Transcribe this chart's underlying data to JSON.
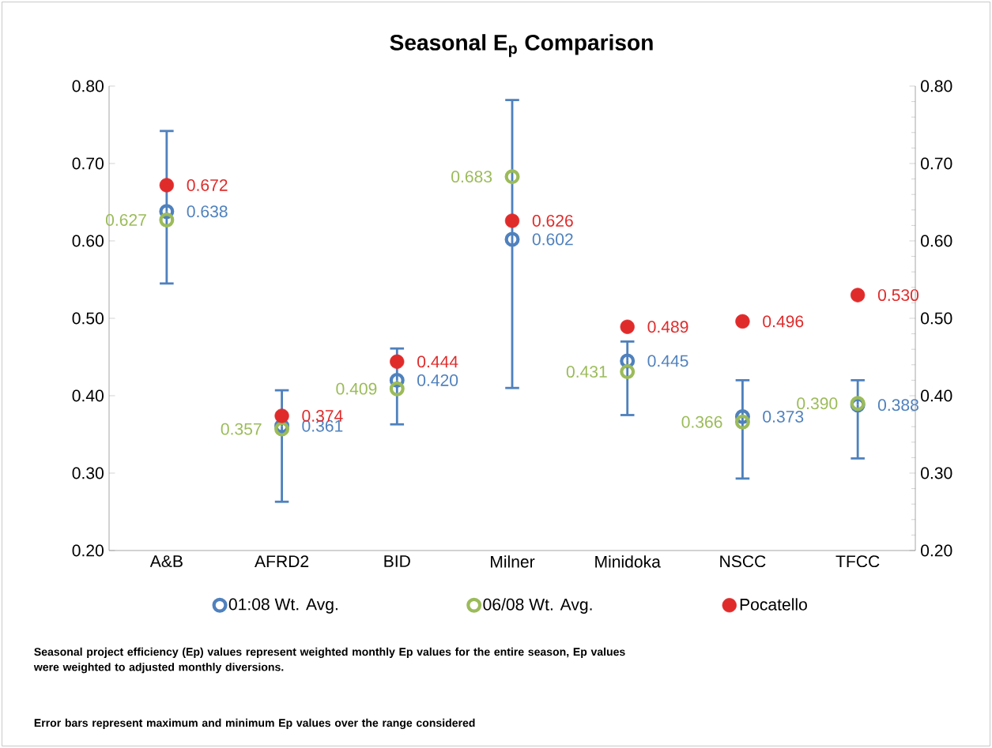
{
  "chart_data": {
    "type": "scatter",
    "title": "Seasonal E$_{p}$ Comparison",
    "categories": [
      "A&B",
      "AFRD2",
      "BID",
      "Milner",
      "Minidoka",
      "NSCC",
      "TFCC"
    ],
    "series": [
      {
        "name": "01:08 Wt. Avg.",
        "color": "#4f81bd",
        "values": [
          0.638,
          0.361,
          0.42,
          0.602,
          0.445,
          0.373,
          0.388
        ],
        "value_labels": [
          "0.638",
          "0.361",
          "0.420",
          "0.602",
          "0.445",
          "0.373",
          "0.388"
        ],
        "errors": [
          [
            0.545,
            0.742
          ],
          [
            0.263,
            0.407
          ],
          [
            0.363,
            0.461
          ],
          [
            0.41,
            0.782
          ],
          [
            0.375,
            0.47
          ],
          [
            0.293,
            0.42
          ],
          [
            0.319,
            0.42
          ]
        ]
      },
      {
        "name": "06/08 Wt. Avg.",
        "color": "#9bbb59",
        "values": [
          0.627,
          0.357,
          0.409,
          0.683,
          0.431,
          0.366,
          0.39
        ],
        "value_labels": [
          "0.627",
          "0.357",
          "0.409",
          "0.683",
          "0.431",
          "0.366",
          "0.390"
        ]
      },
      {
        "name": "Pocatello",
        "color": "#e02b2b",
        "values": [
          0.672,
          0.374,
          0.444,
          0.626,
          0.489,
          0.496,
          0.53
        ],
        "value_labels": [
          "0.672",
          "0.374",
          "0.444",
          "0.626",
          "0.489",
          "0.496",
          "0.530"
        ]
      }
    ],
    "ylim": [
      0.2,
      0.8
    ],
    "yticks": [
      {
        "value": 0.2,
        "label": "0.20"
      },
      {
        "value": 0.3,
        "label": "0.30"
      },
      {
        "value": 0.4,
        "label": "0.40"
      },
      {
        "value": 0.5,
        "label": "0.50"
      },
      {
        "value": 0.6,
        "label": "0.60"
      },
      {
        "value": 0.7,
        "label": "0.70"
      },
      {
        "value": 0.8,
        "label": "0.80"
      }
    ],
    "y2lim": [
      0.2,
      0.8
    ],
    "y2ticks": [
      {
        "value": 0.2,
        "label": "0.20"
      },
      {
        "value": 0.3,
        "label": "0.30"
      },
      {
        "value": 0.4,
        "label": "0.40"
      },
      {
        "value": 0.5,
        "label": "0.50"
      },
      {
        "value": 0.6,
        "label": "0.60"
      },
      {
        "value": 0.7,
        "label": "0.70"
      },
      {
        "value": 0.8,
        "label": "0.80"
      }
    ],
    "marker": "circle",
    "legend": "bottom",
    "annotations": [
      "Seasonal project efficiency (Ep) values represent weighted monthly Ep values for the entire season, Ep values were weighted to adjusted monthly diversions.",
      "Error bars represent maximum and minimum Ep values over the range considered"
    ]
  }
}
